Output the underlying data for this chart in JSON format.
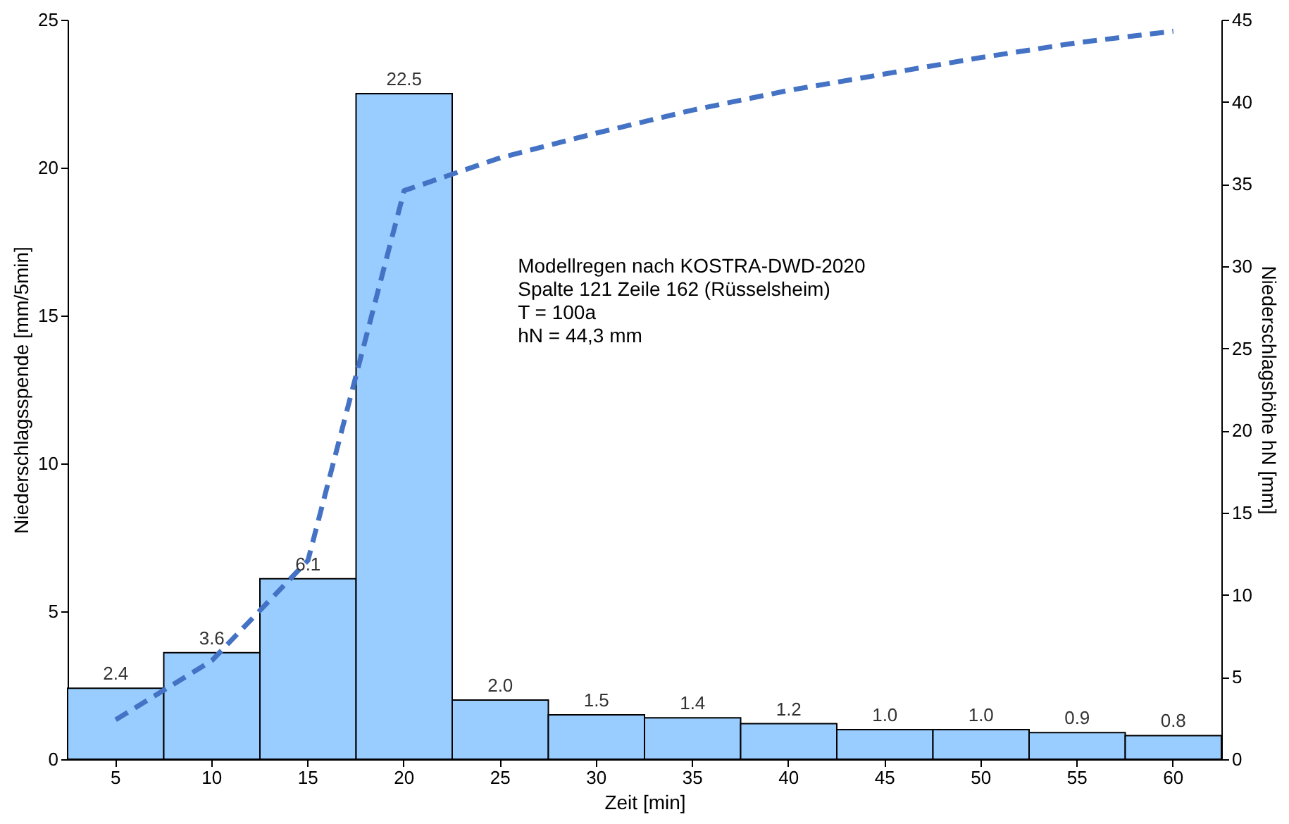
{
  "chart_data": {
    "type": "bar",
    "xlabel": "Zeit [min]",
    "ylabel": "Niederschlagsspende  [mm/5min]",
    "y2label": "Niederschlagshöhe  hN [mm]",
    "categories": [
      "5",
      "10",
      "15",
      "20",
      "25",
      "30",
      "35",
      "40",
      "45",
      "50",
      "55",
      "60"
    ],
    "series": [
      {
        "color": "#99ccff",
        "values": [
          2.4,
          3.6,
          6.1,
          22.5,
          2.0,
          1.5,
          1.4,
          1.2,
          1.0,
          1.0,
          0.9,
          0.8
        ],
        "value_labels": [
          "2.4",
          "3.6",
          "6.1",
          "22.5",
          "2.0",
          "1.5",
          "1.4",
          "1.2",
          "1.0",
          "1.0",
          "0.9",
          "0.8"
        ]
      },
      {
        "type": "line",
        "axis": "y2",
        "color": "#4472c4",
        "line_style": "dashed",
        "values": [
          2.4,
          6.0,
          12.1,
          34.6,
          36.6,
          38.1,
          39.5,
          40.7,
          41.7,
          42.7,
          43.6,
          44.3
        ]
      }
    ],
    "ylim": [
      0,
      25
    ],
    "yticks": [
      0,
      5,
      10,
      15,
      20,
      25
    ],
    "y2lim": [
      0,
      45
    ],
    "y2ticks": [
      0,
      5,
      10,
      15,
      20,
      25,
      30,
      35,
      40,
      45
    ],
    "grid": false,
    "marker": "none",
    "annotations": [
      "Modellregen nach KOSTRA-DWD-2020",
      "Spalte 121 Zeile 162 (Rüsselsheim)",
      "T = 100a",
      "hN = 44,3 mm"
    ]
  }
}
